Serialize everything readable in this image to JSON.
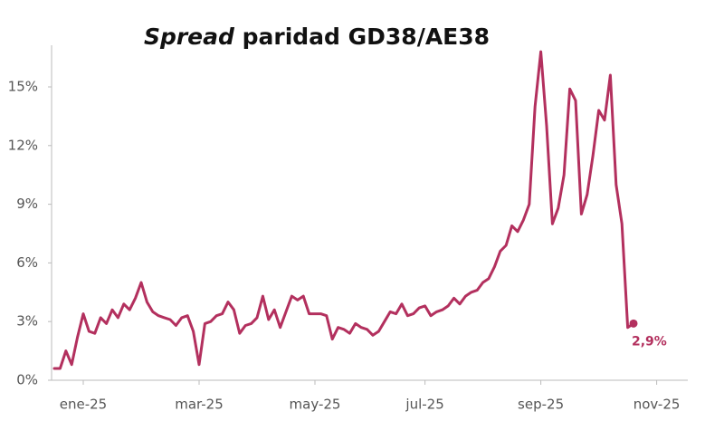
{
  "chart_data": {
    "type": "line",
    "title_parts": [
      "Spread",
      "paridad GD38/AE38"
    ],
    "categories": [
      null,
      null,
      null,
      null,
      null,
      "ene-25",
      null,
      null,
      null,
      null,
      null,
      null,
      null,
      null,
      null,
      null,
      null,
      null,
      null,
      null,
      null,
      null,
      null,
      null,
      null,
      "mar-25",
      null,
      null,
      null,
      null,
      null,
      null,
      null,
      null,
      null,
      null,
      null,
      null,
      null,
      null,
      null,
      null,
      null,
      null,
      null,
      "may-25",
      null,
      null,
      null,
      null,
      null,
      null,
      null,
      null,
      null,
      null,
      null,
      null,
      null,
      null,
      null,
      null,
      null,
      null,
      "jul-25",
      null,
      null,
      null,
      null,
      null,
      null,
      null,
      null,
      null,
      null,
      null,
      null,
      null,
      null,
      null,
      null,
      null,
      null,
      null,
      "sep-25",
      null,
      null,
      null,
      null,
      null,
      null,
      null,
      null,
      null,
      null,
      null,
      null,
      null,
      null,
      null,
      null,
      null,
      null,
      null,
      "nov-25"
    ],
    "series": [
      {
        "name": "Spread",
        "color": "#b3305e",
        "values": [
          0.6,
          0.6,
          1.5,
          0.8,
          2.2,
          3.4,
          2.5,
          2.4,
          3.2,
          2.9,
          3.6,
          3.2,
          3.9,
          3.6,
          4.2,
          5.0,
          4.0,
          3.5,
          3.3,
          3.2,
          3.1,
          2.8,
          3.2,
          3.3,
          2.5,
          0.8,
          2.9,
          3.0,
          3.3,
          3.4,
          4.0,
          3.6,
          2.4,
          2.8,
          2.9,
          3.2,
          4.3,
          3.1,
          3.6,
          2.7,
          3.5,
          4.3,
          4.1,
          4.3,
          3.4,
          3.4,
          3.4,
          3.3,
          2.1,
          2.7,
          2.6,
          2.4,
          2.9,
          2.7,
          2.6,
          2.3,
          2.5,
          3.0,
          3.5,
          3.4,
          3.9,
          3.3,
          3.4,
          3.7,
          3.8,
          3.3,
          3.5,
          3.6,
          3.8,
          4.2,
          3.9,
          4.3,
          4.5,
          4.6,
          5.0,
          5.2,
          5.8,
          6.6,
          6.9,
          7.9,
          7.6,
          8.2,
          9.0,
          14.0,
          16.8,
          13.0,
          8.0,
          8.8,
          10.5,
          14.9,
          14.3,
          8.5,
          9.5,
          11.5,
          13.8,
          13.3,
          15.6,
          10.0,
          8.0,
          2.7,
          2.9,
          null,
          null,
          null,
          null
        ],
        "value_labels": [
          null,
          null,
          null,
          null,
          null,
          null,
          null,
          null,
          null,
          null,
          null,
          null,
          null,
          null,
          null,
          null,
          null,
          null,
          null,
          null,
          null,
          null,
          null,
          null,
          null,
          null,
          null,
          null,
          null,
          null,
          null,
          null,
          null,
          null,
          null,
          null,
          null,
          null,
          null,
          null,
          null,
          null,
          null,
          null,
          null,
          null,
          null,
          null,
          null,
          null,
          null,
          null,
          null,
          null,
          null,
          null,
          null,
          null,
          null,
          null,
          null,
          null,
          null,
          null,
          null,
          null,
          null,
          null,
          null,
          null,
          null,
          null,
          null,
          null,
          null,
          null,
          null,
          null,
          null,
          null,
          null,
          null,
          null,
          null,
          null,
          null,
          null,
          null,
          null,
          null,
          null,
          null,
          null,
          null,
          null,
          null,
          null,
          null,
          null,
          null,
          "2,9%",
          null,
          null,
          null,
          null
        ]
      }
    ],
    "ylim": [
      0,
      17
    ],
    "yticks": [
      {
        "value": 0,
        "label": "0%"
      },
      {
        "value": 3,
        "label": "3%"
      },
      {
        "value": 6,
        "label": "6%"
      },
      {
        "value": 9,
        "label": "9%"
      },
      {
        "value": 12,
        "label": "12%"
      },
      {
        "value": 15,
        "label": "15%"
      }
    ],
    "grid": false
  }
}
